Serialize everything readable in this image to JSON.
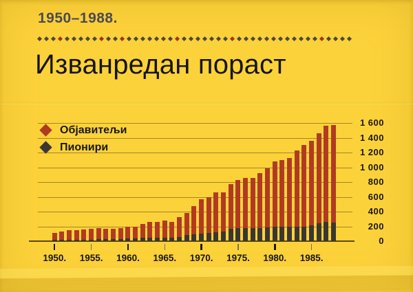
{
  "page": {
    "subtitle": "1950–1988.",
    "title": "Изванредан пораст"
  },
  "divider": {
    "diamond_count": 46,
    "red_indexes": [
      3,
      9,
      12,
      20,
      28,
      41
    ],
    "dark_color": "#4e4740",
    "red_color": "#a23325"
  },
  "legend": {
    "items": [
      {
        "label": "Објавитељи",
        "icon": "diamond-icon",
        "color": "#b13a23"
      },
      {
        "label": "Пионири",
        "icon": "diamond-icon",
        "color": "#3b3632"
      }
    ]
  },
  "chart_data": {
    "type": "bar",
    "stacked": true,
    "title": "Изванредан пораст",
    "period": "1950–1988.",
    "grid": "horizontal",
    "legend_position": "top-left",
    "y_axis_side": "right",
    "ylim": [
      0,
      1600
    ],
    "ytick_step": 200,
    "yticks": [
      {
        "value": 1600,
        "label": "1 600"
      },
      {
        "value": 1400,
        "label": "1 400"
      },
      {
        "value": 1200,
        "label": "1 200"
      },
      {
        "value": 1000,
        "label": "1 000"
      },
      {
        "value": 800,
        "label": "800"
      },
      {
        "value": 600,
        "label": "600"
      },
      {
        "value": 400,
        "label": "400"
      },
      {
        "value": 200,
        "label": "200"
      },
      {
        "value": 0,
        "label": "0"
      }
    ],
    "xticks": [
      {
        "year": 1950,
        "label": "1950.",
        "major": true
      },
      {
        "year": 1955,
        "label": "1955.",
        "major": false
      },
      {
        "year": 1960,
        "label": "1960.",
        "major": true
      },
      {
        "year": 1965,
        "label": "1965.",
        "major": false
      },
      {
        "year": 1970,
        "label": "1970.",
        "major": true
      },
      {
        "year": 1975,
        "label": "1975.",
        "major": false
      },
      {
        "year": 1980,
        "label": "1980.",
        "major": true
      },
      {
        "year": 1985,
        "label": "1985.",
        "major": false
      }
    ],
    "x": [
      1950,
      1951,
      1952,
      1953,
      1954,
      1955,
      1956,
      1957,
      1958,
      1959,
      1960,
      1961,
      1962,
      1963,
      1964,
      1965,
      1966,
      1967,
      1968,
      1969,
      1970,
      1971,
      1972,
      1973,
      1974,
      1975,
      1976,
      1977,
      1978,
      1979,
      1980,
      1981,
      1982,
      1983,
      1984,
      1985,
      1986,
      1987,
      1988
    ],
    "series": [
      {
        "name": "Објавитељи",
        "color": "#b13a23",
        "values": [
          110,
          130,
          150,
          150,
          160,
          170,
          180,
          165,
          165,
          180,
          200,
          200,
          230,
          260,
          260,
          280,
          265,
          325,
          380,
          475,
          565,
          600,
          660,
          660,
          770,
          825,
          860,
          860,
          925,
          985,
          1080,
          1100,
          1130,
          1230,
          1300,
          1360,
          1465,
          1560,
          1570
        ]
      },
      {
        "name": "Пионири",
        "color": "#3b3632",
        "values": [
          15,
          15,
          15,
          20,
          20,
          20,
          25,
          25,
          30,
          30,
          40,
          40,
          45,
          45,
          50,
          50,
          50,
          60,
          80,
          95,
          100,
          110,
          125,
          130,
          165,
          175,
          180,
          175,
          180,
          185,
          195,
          195,
          195,
          195,
          200,
          210,
          240,
          260,
          250
        ]
      }
    ]
  }
}
